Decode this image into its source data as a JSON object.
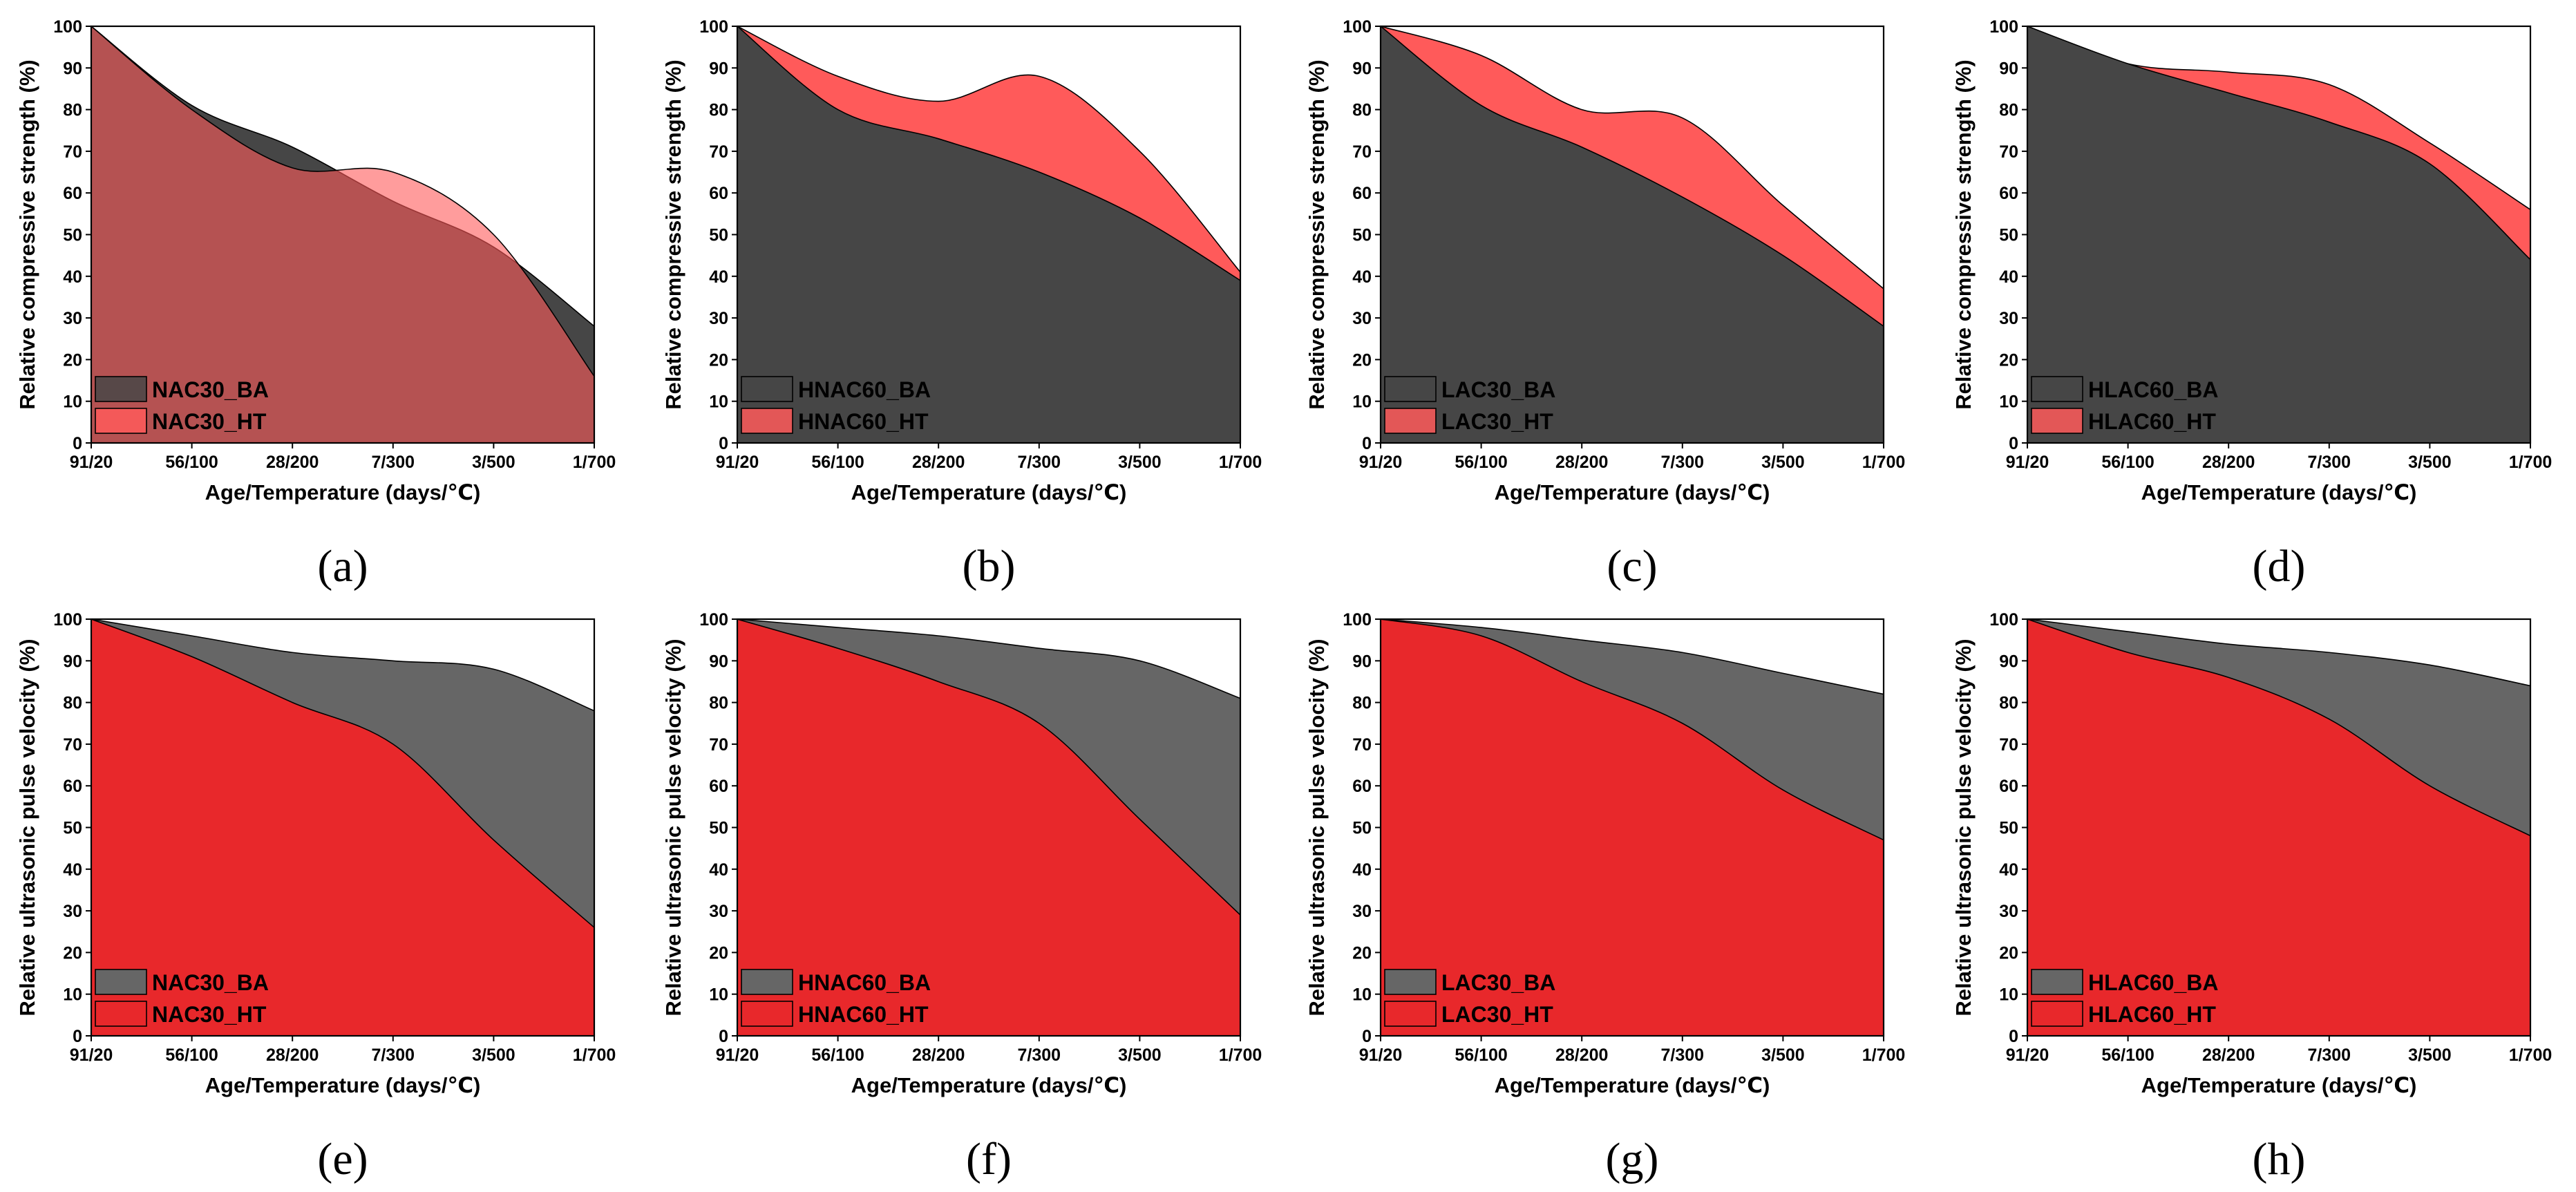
{
  "colors": {
    "BA_strength": "#464646",
    "HT_strength": "#ff5a5a",
    "BA_upv": "#666666",
    "HT_upv": "#e8282b",
    "axis": "#000000"
  },
  "chart_data": [
    {
      "type": "area",
      "caption": "(a)",
      "categories": [
        "91/20",
        "56/100",
        "28/200",
        "7/300",
        "3/500",
        "1/700"
      ],
      "xlabel": "Age/Temperature (days/℃)",
      "ylabel": "Relative compressive strength (%)",
      "ylim": [
        0,
        100
      ],
      "yticks": [
        0,
        10,
        20,
        30,
        40,
        50,
        60,
        70,
        80,
        90,
        100
      ],
      "legend_position": "bottom-left",
      "series": [
        {
          "name": "NAC30_BA",
          "values": [
            100,
            81,
            71,
            58,
            47,
            28
          ],
          "color_key": "BA_strength",
          "opacity": 1.0
        },
        {
          "name": "NAC30_HT",
          "values": [
            100,
            80,
            66,
            65,
            50,
            16
          ],
          "color_key": "HT_strength",
          "opacity": 0.6
        }
      ]
    },
    {
      "type": "area",
      "caption": "(b)",
      "categories": [
        "91/20",
        "56/100",
        "28/200",
        "7/300",
        "3/500",
        "1/700"
      ],
      "xlabel": "Age/Temperature (days/℃)",
      "ylabel": "Relative compressive strength (%)",
      "ylim": [
        0,
        100
      ],
      "yticks": [
        0,
        10,
        20,
        30,
        40,
        50,
        60,
        70,
        80,
        90,
        100
      ],
      "legend_position": "bottom-left",
      "series": [
        {
          "name": "HNAC60_BA",
          "values": [
            100,
            80,
            73,
            65,
            54,
            39
          ],
          "color_key": "BA_strength",
          "opacity": 1.0
        },
        {
          "name": "HNAC60_HT",
          "values": [
            100,
            88,
            82,
            88,
            70,
            41
          ],
          "color_key": "HT_strength",
          "opacity": 1.0
        }
      ]
    },
    {
      "type": "area",
      "caption": "(c)",
      "categories": [
        "91/20",
        "56/100",
        "28/200",
        "7/300",
        "3/500",
        "1/700"
      ],
      "xlabel": "Age/Temperature (days/℃)",
      "ylabel": "Relative compressive strength (%)",
      "ylim": [
        0,
        100
      ],
      "yticks": [
        0,
        10,
        20,
        30,
        40,
        50,
        60,
        70,
        80,
        90,
        100
      ],
      "legend_position": "bottom-left",
      "series": [
        {
          "name": "LAC30_BA",
          "values": [
            100,
            81,
            71,
            59,
            45,
            28
          ],
          "color_key": "BA_strength",
          "opacity": 1.0
        },
        {
          "name": "LAC30_HT",
          "values": [
            100,
            93,
            80,
            78,
            57,
            37
          ],
          "color_key": "HT_strength",
          "opacity": 1.0
        }
      ]
    },
    {
      "type": "area",
      "caption": "(d)",
      "categories": [
        "91/20",
        "56/100",
        "28/200",
        "7/300",
        "3/500",
        "1/700"
      ],
      "xlabel": "Age/Temperature (days/℃)",
      "ylabel": "Relative compressive strength (%)",
      "ylim": [
        0,
        100
      ],
      "yticks": [
        0,
        10,
        20,
        30,
        40,
        50,
        60,
        70,
        80,
        90,
        100
      ],
      "legend_position": "bottom-left",
      "series": [
        {
          "name": "HLAC60_BA",
          "values": [
            100,
            91,
            84,
            77,
            67,
            44
          ],
          "color_key": "BA_strength",
          "opacity": 1.0
        },
        {
          "name": "HLAC60_HT",
          "values": [
            100,
            91,
            89,
            86,
            72,
            56
          ],
          "color_key": "HT_strength",
          "opacity": 1.0
        }
      ]
    },
    {
      "type": "area",
      "caption": "(e)",
      "categories": [
        "91/20",
        "56/100",
        "28/200",
        "7/300",
        "3/500",
        "1/700"
      ],
      "xlabel": "Age/Temperature (days/℃)",
      "ylabel": "Relative ultrasonic pulse velocity (%)",
      "ylim": [
        0,
        100
      ],
      "yticks": [
        0,
        10,
        20,
        30,
        40,
        50,
        60,
        70,
        80,
        90,
        100
      ],
      "legend_position": "bottom-left",
      "series": [
        {
          "name": "NAC30_BA",
          "values": [
            100,
            96,
            92,
            90,
            88,
            78
          ],
          "color_key": "BA_upv",
          "opacity": 1.0
        },
        {
          "name": "NAC30_HT",
          "values": [
            100,
            91,
            80,
            70,
            47,
            26
          ],
          "color_key": "HT_upv",
          "opacity": 1.0
        }
      ]
    },
    {
      "type": "area",
      "caption": "(f)",
      "categories": [
        "91/20",
        "56/100",
        "28/200",
        "7/300",
        "3/500",
        "1/700"
      ],
      "xlabel": "Age/Temperature (days/℃)",
      "ylabel": "Relative ultrasonic pulse velocity (%)",
      "ylim": [
        0,
        100
      ],
      "yticks": [
        0,
        10,
        20,
        30,
        40,
        50,
        60,
        70,
        80,
        90,
        100
      ],
      "legend_position": "bottom-left",
      "series": [
        {
          "name": "HNAC60_BA",
          "values": [
            100,
            98,
            96,
            93,
            90,
            81
          ],
          "color_key": "BA_upv",
          "opacity": 1.0
        },
        {
          "name": "HNAC60_HT",
          "values": [
            100,
            93,
            85,
            75,
            52,
            29
          ],
          "color_key": "HT_upv",
          "opacity": 1.0
        }
      ]
    },
    {
      "type": "area",
      "caption": "(g)",
      "categories": [
        "91/20",
        "56/100",
        "28/200",
        "7/300",
        "3/500",
        "1/700"
      ],
      "xlabel": "Age/Temperature (days/℃)",
      "ylabel": "Relative ultrasonic pulse velocity (%)",
      "ylim": [
        0,
        100
      ],
      "yticks": [
        0,
        10,
        20,
        30,
        40,
        50,
        60,
        70,
        80,
        90,
        100
      ],
      "legend_position": "bottom-left",
      "series": [
        {
          "name": "LAC30_BA",
          "values": [
            100,
            98,
            95,
            92,
            87,
            82
          ],
          "color_key": "BA_upv",
          "opacity": 1.0
        },
        {
          "name": "LAC30_HT",
          "values": [
            100,
            96,
            85,
            75,
            59,
            47
          ],
          "color_key": "HT_upv",
          "opacity": 1.0
        }
      ]
    },
    {
      "type": "area",
      "caption": "(h)",
      "categories": [
        "91/20",
        "56/100",
        "28/200",
        "7/300",
        "3/500",
        "1/700"
      ],
      "xlabel": "Age/Temperature (days/℃)",
      "ylabel": "Relative ultrasonic pulse velocity (%)",
      "ylim": [
        0,
        100
      ],
      "yticks": [
        0,
        10,
        20,
        30,
        40,
        50,
        60,
        70,
        80,
        90,
        100
      ],
      "legend_position": "bottom-left",
      "series": [
        {
          "name": "HLAC60_BA",
          "values": [
            100,
            97,
            94,
            92,
            89,
            84
          ],
          "color_key": "BA_upv",
          "opacity": 1.0
        },
        {
          "name": "HLAC60_HT",
          "values": [
            100,
            92,
            86,
            76,
            60,
            48
          ],
          "color_key": "HT_upv",
          "opacity": 1.0
        }
      ]
    }
  ]
}
